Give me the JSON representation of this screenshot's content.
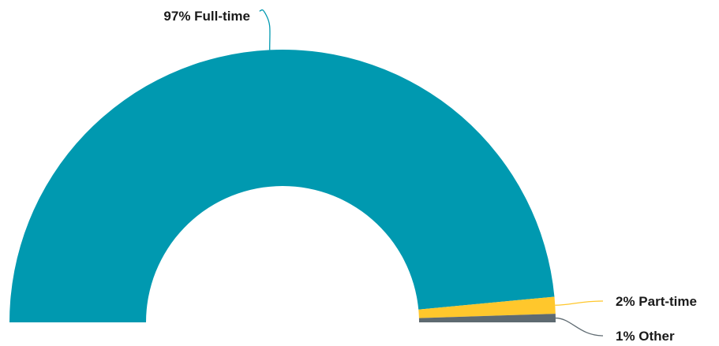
{
  "chart_data": {
    "type": "pie",
    "variant": "semi-donut",
    "title": "",
    "legend": "none",
    "slices": [
      {
        "name": "Full-time",
        "value": 97,
        "label": "97% Full-time",
        "color": "#0099B0"
      },
      {
        "name": "Part-time",
        "value": 2,
        "label": "2% Part-time",
        "color": "#FFC72C"
      },
      {
        "name": "Other",
        "value": 1,
        "label": "1% Other",
        "color": "#5E6A71"
      }
    ]
  }
}
